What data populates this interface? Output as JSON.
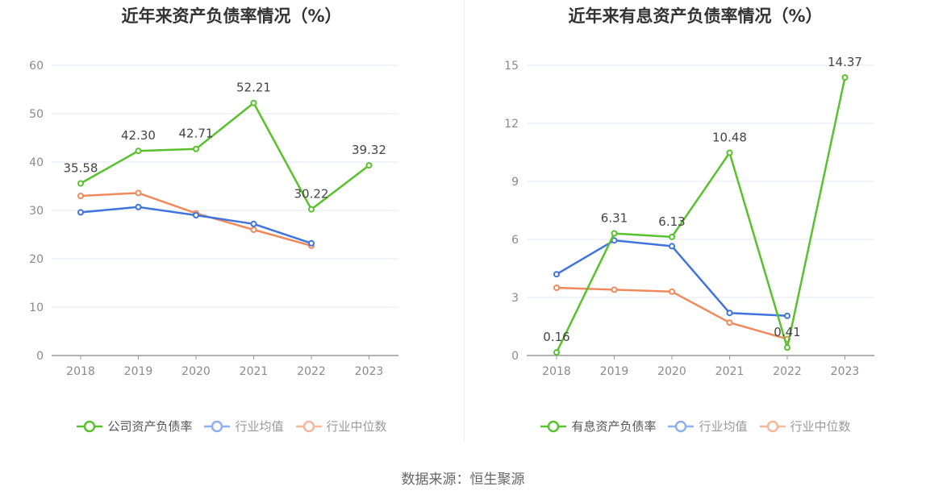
{
  "source": "数据来源：恒生聚源",
  "colors": {
    "company": "#5ac12e",
    "industry_avg": "#3f74de",
    "industry_median": "#f08a5d",
    "industry_avg_legend": "#8fb0ee",
    "industry_median_legend": "#f6b69c",
    "grid": "#e4e7f2",
    "axis": "#999999"
  },
  "chart_data": [
    {
      "type": "line",
      "title": "近年来资产负债率情况（%）",
      "categories": [
        "2018",
        "2019",
        "2020",
        "2021",
        "2022",
        "2023"
      ],
      "ylim": [
        0,
        60
      ],
      "yticks": [
        "0",
        "10",
        "20",
        "30",
        "40",
        "50",
        "60"
      ],
      "grid": true,
      "legend_position": "bottom",
      "series": [
        {
          "name": "公司资产负债率",
          "key": "company",
          "values": [
            35.58,
            42.3,
            42.71,
            52.21,
            30.22,
            39.32
          ],
          "labels": [
            "35.58",
            "42.30",
            "42.71",
            "52.21",
            "30.22",
            "39.32"
          ]
        },
        {
          "name": "行业均值",
          "key": "industry_avg",
          "values": [
            29.6,
            30.7,
            29.0,
            27.2,
            23.2,
            null
          ]
        },
        {
          "name": "行业中位数",
          "key": "industry_median",
          "values": [
            33.0,
            33.6,
            29.4,
            26.0,
            22.7,
            null
          ]
        }
      ]
    },
    {
      "type": "line",
      "title": "近年来有息资产负债率情况（%）",
      "categories": [
        "2018",
        "2019",
        "2020",
        "2021",
        "2022",
        "2023"
      ],
      "ylim": [
        0,
        15
      ],
      "yticks": [
        "0",
        "3",
        "6",
        "9",
        "12",
        "15"
      ],
      "grid": true,
      "legend_position": "bottom",
      "series": [
        {
          "name": "有息资产负债率",
          "key": "company",
          "values": [
            0.16,
            6.31,
            6.13,
            10.48,
            0.41,
            14.37
          ],
          "labels": [
            "0.16",
            "6.31",
            "6.13",
            "10.48",
            "0.41",
            "14.37"
          ]
        },
        {
          "name": "行业均值",
          "key": "industry_avg",
          "values": [
            4.2,
            5.95,
            5.65,
            2.2,
            2.05,
            null
          ]
        },
        {
          "name": "行业中位数",
          "key": "industry_median",
          "values": [
            3.5,
            3.4,
            3.3,
            1.7,
            0.85,
            null
          ]
        }
      ]
    }
  ]
}
